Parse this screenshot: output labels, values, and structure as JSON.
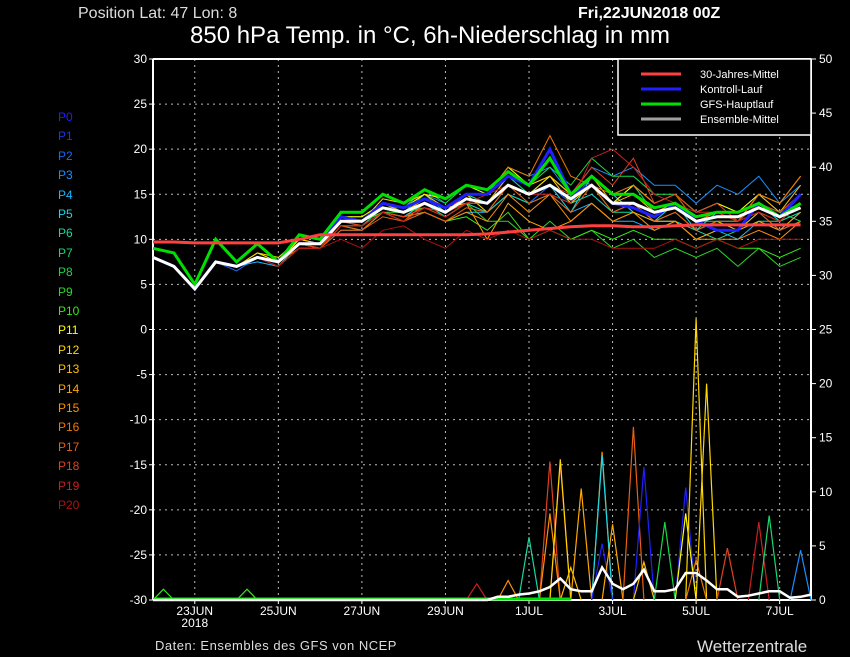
{
  "header": {
    "position": "Position   Lat: 47 Lon: 8",
    "date": "Fri,22JUN2018 00Z",
    "title": "850 hPa Temp. in °C, 6h-Niederschlag in mm"
  },
  "footer": {
    "source": "Daten: Ensembles des GFS von NCEP",
    "brand": "Wetterzentrale"
  },
  "chart_data": {
    "type": "line",
    "title": "850 hPa Temp. in °C, 6h-Niederschlag in mm",
    "start": "22JUN2018 00Z",
    "temp_step_hours": 12,
    "precip_step_hours": 6,
    "ylim_left": [
      -30,
      30
    ],
    "yticks_left": [
      30,
      25,
      20,
      15,
      10,
      5,
      0,
      -5,
      -10,
      -15,
      -20,
      -25,
      -30
    ],
    "ylim_right": [
      0,
      50
    ],
    "yticks_right": [
      50,
      45,
      40,
      35,
      30,
      25,
      20,
      15,
      10,
      5,
      0
    ],
    "xticks": [
      {
        "label": "23JUN",
        "sub": "2018",
        "day": 1
      },
      {
        "label": "25JUN",
        "day": 3
      },
      {
        "label": "27JUN",
        "day": 5
      },
      {
        "label": "29JUN",
        "day": 7
      },
      {
        "label": "1JUL",
        "day": 9
      },
      {
        "label": "3JUL",
        "day": 11
      },
      {
        "label": "5JUL",
        "day": 13
      },
      {
        "label": "7JUL",
        "day": 15
      }
    ],
    "xmax_hours": 378,
    "grid": true,
    "legend_position": "top-right",
    "legend": [
      {
        "label": "30-Jahres-Mittel",
        "color": "#ff4040"
      },
      {
        "label": "Kontroll-Lauf",
        "color": "#2020ff"
      },
      {
        "label": "GFS-Hauptlauf",
        "color": "#00e000"
      },
      {
        "label": "Ensemble-Mittel",
        "color": "#a0a0a0"
      }
    ],
    "climate": [
      9.7,
      9.7,
      9.6,
      9.6,
      9.6,
      9.6,
      9.6,
      10,
      10.5,
      10.5,
      10.5,
      10.5,
      10.5,
      10.5,
      10.5,
      10.5,
      10.6,
      10.8,
      11,
      11.2,
      11.4,
      11.5,
      11.5,
      11.4,
      11.4,
      11.5,
      11.6,
      11.6,
      11.6,
      11.6,
      11.6,
      11.6
    ],
    "ensemble_mean": [
      8,
      7,
      4.5,
      7.5,
      7,
      8,
      7.5,
      9.5,
      9.5,
      12,
      12,
      13.5,
      13,
      14,
      13,
      14.5,
      14,
      16,
      15,
      16,
      14.5,
      16,
      14,
      14,
      13,
      13.5,
      12,
      12.5,
      12.5,
      13.5,
      12.5,
      13.5
    ],
    "gfs": [
      9,
      8.5,
      5,
      10,
      7.5,
      9.5,
      7.5,
      10.5,
      10,
      13,
      13,
      15,
      14,
      15.5,
      14.5,
      16,
      15.5,
      17.5,
      16,
      19,
      15,
      17,
      15,
      15,
      13.5,
      14,
      12.5,
      13,
      13,
      14,
      12.5,
      14
    ],
    "members": [
      {
        "name": "P0",
        "color": "#2020ff",
        "values": [
          8,
          7,
          4.5,
          7.5,
          7,
          8,
          7.5,
          9.5,
          9.5,
          12.5,
          12,
          14,
          13.5,
          14.5,
          13.5,
          15,
          15,
          17,
          16,
          20,
          15,
          16,
          14,
          13.5,
          12.5,
          14,
          12,
          11,
          11,
          14,
          12.5,
          15
        ]
      },
      {
        "name": "P1",
        "color": "#1838e8",
        "values": [
          8,
          7,
          4.5,
          7.5,
          7,
          8,
          7.5,
          9.5,
          9,
          12,
          12,
          14,
          13,
          14.5,
          13,
          15,
          14,
          17,
          15,
          17,
          14,
          15,
          13,
          14,
          12,
          12,
          11,
          12,
          12,
          13,
          11,
          13
        ]
      },
      {
        "name": "P2",
        "color": "#1868ff",
        "values": [
          8,
          7,
          4.5,
          7.5,
          6.5,
          8,
          7,
          9,
          9,
          11.5,
          11.5,
          13,
          12.5,
          14,
          12.5,
          14,
          13,
          15,
          14,
          16,
          14,
          17,
          15,
          16,
          14,
          15,
          13,
          14,
          13,
          15,
          13,
          14
        ]
      },
      {
        "name": "P3",
        "color": "#1890ff",
        "values": [
          8,
          7,
          4.5,
          7.5,
          7,
          8,
          7.5,
          9.5,
          9.5,
          12,
          12,
          13.5,
          13.5,
          15,
          14,
          16,
          15,
          18,
          17,
          18,
          15,
          18,
          17,
          18,
          16,
          16,
          14,
          16,
          15,
          17,
          14,
          16
        ]
      },
      {
        "name": "P4",
        "color": "#18b8ff",
        "values": [
          8,
          7,
          4.5,
          7.5,
          7,
          7.5,
          7,
          9,
          9,
          11.5,
          11,
          13,
          12,
          13,
          12,
          13,
          13,
          15,
          14,
          15,
          13,
          14,
          12,
          12,
          11,
          12,
          10,
          11,
          10,
          12,
          11,
          12
        ]
      },
      {
        "name": "P5",
        "color": "#18d8e8",
        "values": [
          8,
          7,
          4.5,
          7.5,
          7,
          8,
          7,
          9,
          9,
          11,
          11,
          13,
          12.5,
          14,
          13,
          15,
          14,
          16,
          15,
          16,
          13,
          17,
          15,
          13,
          12,
          14,
          11,
          13,
          13,
          14,
          12,
          13
        ]
      },
      {
        "name": "P6",
        "color": "#18d8a0",
        "values": [
          8,
          7,
          4.5,
          7.5,
          7,
          8,
          7,
          9.5,
          9,
          12,
          11.5,
          13.5,
          13,
          14,
          12.5,
          14,
          13,
          15,
          14,
          15,
          14,
          15,
          13,
          13,
          12,
          12,
          11,
          10,
          11,
          12,
          12,
          13
        ]
      },
      {
        "name": "P7",
        "color": "#18d870",
        "values": [
          8,
          7,
          4.5,
          7.5,
          7,
          8,
          7.5,
          9.5,
          9.5,
          12.5,
          12,
          14,
          13,
          15,
          13,
          15,
          14,
          17,
          15,
          17,
          15,
          16,
          14,
          16,
          13,
          14,
          12,
          12,
          12,
          14,
          13,
          12
        ]
      },
      {
        "name": "P8",
        "color": "#18d848",
        "values": [
          8,
          7,
          4.5,
          7.5,
          7,
          8,
          7.5,
          9.5,
          9.5,
          12.5,
          12.5,
          14,
          13.5,
          15.5,
          14,
          16,
          15,
          18,
          16,
          18,
          16,
          19,
          17,
          17,
          15,
          15,
          13,
          14,
          13,
          14,
          13,
          15
        ]
      },
      {
        "name": "P9",
        "color": "#28d828",
        "values": [
          8,
          7,
          4.5,
          7.5,
          7,
          8,
          7.5,
          9.5,
          9.5,
          12,
          12,
          13,
          13,
          13.5,
          12.5,
          14,
          12,
          12,
          10,
          12,
          10,
          11,
          9,
          10,
          8,
          9,
          8,
          9,
          7,
          9,
          7,
          8
        ]
      },
      {
        "name": "P10",
        "color": "#38e818",
        "values": [
          8,
          7,
          4.5,
          7.5,
          7,
          8,
          7.5,
          9.5,
          9.5,
          12,
          12,
          13,
          12.5,
          13,
          12,
          12.5,
          11,
          13,
          10,
          11,
          10,
          11,
          10,
          11,
          10,
          10,
          9,
          10,
          9,
          9,
          8,
          9
        ]
      },
      {
        "name": "P11",
        "color": "#ffff00",
        "values": [
          8,
          7,
          4.5,
          7.5,
          7,
          8.5,
          7.5,
          10,
          9.5,
          12.5,
          12.5,
          14,
          13.5,
          15,
          14.5,
          16,
          15,
          18,
          16,
          17,
          15,
          16,
          14,
          16,
          14,
          15,
          13,
          14,
          13,
          15,
          14,
          17
        ]
      },
      {
        "name": "P12",
        "color": "#ffd800",
        "values": [
          8,
          7,
          4.5,
          7.5,
          7,
          8.5,
          8,
          10,
          9.5,
          12.5,
          12,
          14.5,
          14,
          15,
          13.5,
          15,
          13,
          16,
          15,
          17,
          14,
          16,
          13,
          14,
          12,
          13,
          11,
          12,
          11,
          13,
          12,
          14
        ]
      },
      {
        "name": "P13",
        "color": "#ffc000",
        "values": [
          8,
          7,
          4.5,
          7.5,
          7,
          8,
          7.5,
          9.5,
          9.5,
          12,
          12,
          14,
          13,
          14.5,
          13.5,
          14,
          14,
          17,
          16,
          17,
          15,
          17,
          14,
          15,
          13,
          14,
          12,
          13,
          12,
          15,
          13,
          16
        ]
      },
      {
        "name": "P14",
        "color": "#ffa800",
        "values": [
          8,
          7,
          4.5,
          7.5,
          7,
          8,
          7,
          9,
          9,
          12,
          11.5,
          13,
          12.5,
          13.5,
          12.5,
          14,
          10,
          14,
          12,
          11,
          12,
          14,
          12,
          13,
          12,
          12,
          10,
          11,
          11,
          12,
          11,
          13
        ]
      },
      {
        "name": "P15",
        "color": "#ff9000",
        "values": [
          8,
          7,
          4.5,
          7.5,
          7,
          8,
          7.5,
          9.5,
          9,
          11.5,
          11.5,
          13,
          12.5,
          13,
          12,
          13,
          12,
          15,
          13,
          15,
          12,
          14,
          12,
          13,
          11,
          12,
          10,
          10,
          10,
          11,
          10,
          12
        ]
      },
      {
        "name": "P16",
        "color": "#f07800",
        "values": [
          8,
          7,
          4.5,
          7.5,
          7,
          8,
          7.5,
          9,
          9,
          11.5,
          11,
          13,
          12,
          14,
          13,
          15,
          15,
          18,
          17,
          21.5,
          17,
          16,
          15,
          16,
          14,
          15,
          12,
          13,
          12,
          15,
          14,
          17
        ]
      },
      {
        "name": "P17",
        "color": "#e86010",
        "values": [
          8,
          7,
          4.5,
          7.5,
          7,
          8,
          7,
          9,
          9,
          11,
          11,
          12.5,
          12,
          13,
          12,
          13.5,
          13,
          16,
          14,
          15,
          13,
          16,
          13,
          14,
          12,
          13,
          11,
          12,
          12,
          13,
          11,
          12
        ]
      },
      {
        "name": "P18",
        "color": "#e04020",
        "values": [
          8,
          7,
          4.5,
          7.5,
          7,
          8,
          7.5,
          9.5,
          9,
          12,
          11.5,
          13,
          12.5,
          13.5,
          13,
          14,
          14,
          16,
          15,
          16,
          15,
          18,
          16,
          19,
          14,
          15,
          13,
          14,
          12,
          14,
          13,
          15
        ]
      },
      {
        "name": "P19",
        "color": "#c82020",
        "values": [
          8,
          7,
          4.5,
          7.5,
          7,
          8,
          7,
          9,
          9,
          11.5,
          11.5,
          13,
          12,
          13.5,
          12.5,
          14,
          15,
          16,
          15,
          15,
          14,
          19,
          20,
          18,
          15,
          14,
          13,
          13,
          12,
          13,
          12,
          14
        ]
      },
      {
        "name": "P20",
        "color": "#b01010",
        "values": [
          8,
          7,
          4.5,
          7.5,
          7,
          8,
          7,
          9,
          9,
          10,
          9,
          11,
          11.5,
          10,
          9,
          11,
          10,
          11,
          10,
          11,
          10,
          10,
          9,
          9,
          9,
          10,
          9,
          10,
          9,
          10,
          10,
          10
        ]
      }
    ],
    "precip_mean": [
      0,
      0,
      0,
      0,
      0,
      0,
      0,
      0,
      0,
      0,
      0,
      0,
      0,
      0,
      0,
      0,
      0,
      0,
      0,
      0,
      0,
      0,
      0,
      0,
      0,
      0,
      0,
      0,
      0,
      0,
      0,
      0,
      0,
      0.3,
      0.3,
      0.5,
      0.6,
      0.8,
      1.2,
      2,
      1,
      0.8,
      0.8,
      3,
      1.5,
      1,
      1.5,
      2.8,
      0.8,
      0.8,
      1,
      2.5,
      2.5,
      1.8,
      1,
      1,
      0.3,
      0.4,
      0.6,
      0.8,
      0.8,
      0.2,
      0.3,
      0.5
    ],
    "precip_events": [
      {
        "member": "P10",
        "step": 1,
        "mm": 1
      },
      {
        "member": "P10",
        "step": 9,
        "mm": 1
      },
      {
        "member": "P19",
        "step": 31,
        "mm": 1.5
      },
      {
        "member": "P15",
        "step": 34,
        "mm": 1.8
      },
      {
        "member": "P6",
        "step": 36,
        "mm": 5.8
      },
      {
        "member": "P18",
        "step": 38,
        "mm": 12.8
      },
      {
        "member": "P15",
        "step": 38,
        "mm": 8
      },
      {
        "member": "P18",
        "step": 39,
        "mm": 12.6
      },
      {
        "member": "P12",
        "step": 39,
        "mm": 13
      },
      {
        "member": "P13",
        "step": 40,
        "mm": 3
      },
      {
        "member": "P14",
        "step": 41,
        "mm": 10.3
      },
      {
        "member": "P15",
        "step": 43,
        "mm": 13.7
      },
      {
        "member": "P5",
        "step": 43,
        "mm": 13.4
      },
      {
        "member": "P0",
        "step": 43,
        "mm": 5.2
      },
      {
        "member": "P14",
        "step": 44,
        "mm": 7
      },
      {
        "member": "P17",
        "step": 46,
        "mm": 16
      },
      {
        "member": "P0",
        "step": 47,
        "mm": 12.3
      },
      {
        "member": "P13",
        "step": 47,
        "mm": 3.5
      },
      {
        "member": "P8",
        "step": 49,
        "mm": 7.2
      },
      {
        "member": "P0",
        "step": 51,
        "mm": 10.4
      },
      {
        "member": "P11",
        "step": 51,
        "mm": 8
      },
      {
        "member": "P12",
        "step": 52,
        "mm": 26
      },
      {
        "member": "P16",
        "step": 52,
        "mm": 3.7
      },
      {
        "member": "P12",
        "step": 53,
        "mm": 20
      },
      {
        "member": "P18",
        "step": 55,
        "mm": 4.8
      },
      {
        "member": "P19",
        "step": 58,
        "mm": 7.2
      },
      {
        "member": "P7",
        "step": 59,
        "mm": 7.8
      },
      {
        "member": "P3",
        "step": 62,
        "mm": 4.6
      }
    ]
  }
}
